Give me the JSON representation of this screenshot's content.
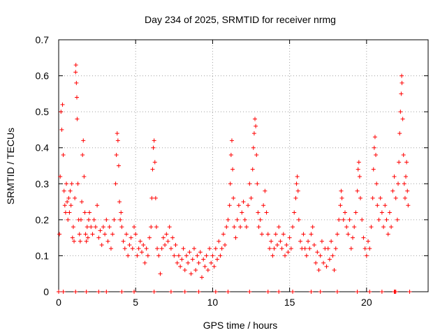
{
  "chart_data": {
    "type": "scatter",
    "title": "Day 234 of 2025, SRMTID for receiver nrmg",
    "xlabel": "GPS time / hours",
    "ylabel": "SRMTID / TECUs",
    "xlim": [
      0,
      24
    ],
    "ylim": [
      0,
      0.7
    ],
    "xticks": [
      0,
      5,
      10,
      15,
      20
    ],
    "yticks": [
      0,
      0.1,
      0.2,
      0.3,
      0.4,
      0.5,
      0.6,
      0.7
    ],
    "xtick_labels": [
      "0",
      "5",
      "10",
      "15",
      "20"
    ],
    "ytick_labels": [
      "0",
      "0.1",
      "0.2",
      "0.3",
      "0.4",
      "0.5",
      "0.6",
      "0.7"
    ],
    "grid": true,
    "marker": "+",
    "color": "#ff0000",
    "series": [
      {
        "name": "SRMTID",
        "points": [
          [
            0.0,
            0.0
          ],
          [
            0.05,
            0.16
          ],
          [
            0.1,
            0.32
          ],
          [
            0.15,
            0.5
          ],
          [
            0.2,
            0.45
          ],
          [
            0.25,
            0.52
          ],
          [
            0.3,
            0.38
          ],
          [
            0.35,
            0.28
          ],
          [
            0.4,
            0.24
          ],
          [
            0.45,
            0.22
          ],
          [
            0.5,
            0.3
          ],
          [
            0.55,
            0.25
          ],
          [
            0.6,
            0.2
          ],
          [
            0.65,
            0.26
          ],
          [
            0.7,
            0.22
          ],
          [
            0.75,
            0.28
          ],
          [
            0.8,
            0.24
          ],
          [
            0.85,
            0.3
          ],
          [
            0.9,
            0.15
          ],
          [
            0.95,
            0.18
          ],
          [
            1.0,
            0.14
          ],
          [
            1.05,
            0.26
          ],
          [
            1.1,
            0.61
          ],
          [
            1.12,
            0.63
          ],
          [
            1.15,
            0.58
          ],
          [
            1.18,
            0.54
          ],
          [
            1.2,
            0.48
          ],
          [
            1.25,
            0.3
          ],
          [
            1.3,
            0.2
          ],
          [
            1.35,
            0.16
          ],
          [
            1.4,
            0.14
          ],
          [
            1.45,
            0.2
          ],
          [
            1.5,
            0.25
          ],
          [
            1.55,
            0.38
          ],
          [
            1.6,
            0.42
          ],
          [
            1.65,
            0.32
          ],
          [
            1.7,
            0.22
          ],
          [
            1.75,
            0.16
          ],
          [
            1.8,
            0.14
          ],
          [
            1.85,
            0.18
          ],
          [
            1.9,
            0.15
          ],
          [
            1.95,
            0.2
          ],
          [
            2.0,
            0.22
          ],
          [
            2.1,
            0.18
          ],
          [
            2.2,
            0.16
          ],
          [
            2.3,
            0.2
          ],
          [
            2.4,
            0.18
          ],
          [
            2.5,
            0.24
          ],
          [
            2.6,
            0.15
          ],
          [
            2.7,
            0.17
          ],
          [
            2.8,
            0.13
          ],
          [
            2.9,
            0.18
          ],
          [
            3.0,
            0.16
          ],
          [
            3.1,
            0.2
          ],
          [
            3.2,
            0.14
          ],
          [
            3.3,
            0.18
          ],
          [
            3.4,
            0.12
          ],
          [
            3.5,
            0.16
          ],
          [
            3.6,
            0.2
          ],
          [
            3.7,
            0.3
          ],
          [
            3.75,
            0.38
          ],
          [
            3.8,
            0.44
          ],
          [
            3.85,
            0.42
          ],
          [
            3.9,
            0.35
          ],
          [
            3.95,
            0.25
          ],
          [
            4.0,
            0.2
          ],
          [
            4.05,
            0.22
          ],
          [
            4.1,
            0.18
          ],
          [
            4.2,
            0.14
          ],
          [
            4.3,
            0.12
          ],
          [
            4.4,
            0.16
          ],
          [
            4.5,
            0.1
          ],
          [
            4.6,
            0.13
          ],
          [
            4.7,
            0.15
          ],
          [
            4.8,
            0.12
          ],
          [
            4.9,
            0.18
          ],
          [
            5.0,
            0.16
          ],
          [
            5.1,
            0.1
          ],
          [
            5.2,
            0.12
          ],
          [
            5.3,
            0.14
          ],
          [
            5.4,
            0.11
          ],
          [
            5.5,
            0.13
          ],
          [
            5.6,
            0.08
          ],
          [
            5.7,
            0.12
          ],
          [
            5.8,
            0.1
          ],
          [
            5.9,
            0.15
          ],
          [
            6.0,
            0.18
          ],
          [
            6.05,
            0.26
          ],
          [
            6.1,
            0.34
          ],
          [
            6.15,
            0.4
          ],
          [
            6.2,
            0.42
          ],
          [
            6.25,
            0.36
          ],
          [
            6.3,
            0.26
          ],
          [
            6.35,
            0.18
          ],
          [
            6.4,
            0.12
          ],
          [
            6.5,
            0.1
          ],
          [
            6.6,
            0.05
          ],
          [
            6.7,
            0.12
          ],
          [
            6.8,
            0.15
          ],
          [
            6.9,
            0.13
          ],
          [
            7.0,
            0.16
          ],
          [
            7.1,
            0.14
          ],
          [
            7.2,
            0.18
          ],
          [
            7.3,
            0.12
          ],
          [
            7.4,
            0.15
          ],
          [
            7.5,
            0.1
          ],
          [
            7.6,
            0.13
          ],
          [
            7.7,
            0.08
          ],
          [
            7.8,
            0.1
          ],
          [
            7.9,
            0.07
          ],
          [
            8.0,
            0.09
          ],
          [
            8.1,
            0.12
          ],
          [
            8.2,
            0.06
          ],
          [
            8.3,
            0.1
          ],
          [
            8.4,
            0.08
          ],
          [
            8.5,
            0.11
          ],
          [
            8.6,
            0.05
          ],
          [
            8.7,
            0.09
          ],
          [
            8.8,
            0.12
          ],
          [
            8.9,
            0.06
          ],
          [
            9.0,
            0.1
          ],
          [
            9.1,
            0.08
          ],
          [
            9.2,
            0.11
          ],
          [
            9.3,
            0.04
          ],
          [
            9.4,
            0.09
          ],
          [
            9.5,
            0.07
          ],
          [
            9.6,
            0.1
          ],
          [
            9.7,
            0.06
          ],
          [
            9.8,
            0.12
          ],
          [
            9.9,
            0.08
          ],
          [
            10.0,
            0.1
          ],
          [
            10.1,
            0.07
          ],
          [
            10.2,
            0.12
          ],
          [
            10.3,
            0.09
          ],
          [
            10.4,
            0.14
          ],
          [
            10.5,
            0.1
          ],
          [
            10.6,
            0.12
          ],
          [
            10.7,
            0.16
          ],
          [
            10.8,
            0.13
          ],
          [
            10.9,
            0.18
          ],
          [
            11.0,
            0.2
          ],
          [
            11.1,
            0.24
          ],
          [
            11.15,
            0.3
          ],
          [
            11.2,
            0.38
          ],
          [
            11.25,
            0.42
          ],
          [
            11.3,
            0.34
          ],
          [
            11.35,
            0.26
          ],
          [
            11.4,
            0.18
          ],
          [
            11.5,
            0.15
          ],
          [
            11.6,
            0.2
          ],
          [
            11.7,
            0.24
          ],
          [
            11.8,
            0.18
          ],
          [
            11.9,
            0.22
          ],
          [
            12.0,
            0.25
          ],
          [
            12.1,
            0.2
          ],
          [
            12.2,
            0.18
          ],
          [
            12.3,
            0.24
          ],
          [
            12.4,
            0.3
          ],
          [
            12.5,
            0.26
          ],
          [
            12.6,
            0.34
          ],
          [
            12.65,
            0.4
          ],
          [
            12.7,
            0.44
          ],
          [
            12.75,
            0.48
          ],
          [
            12.8,
            0.46
          ],
          [
            12.85,
            0.38
          ],
          [
            12.9,
            0.3
          ],
          [
            12.95,
            0.22
          ],
          [
            13.0,
            0.18
          ],
          [
            13.1,
            0.2
          ],
          [
            13.2,
            0.16
          ],
          [
            13.3,
            0.24
          ],
          [
            13.4,
            0.28
          ],
          [
            13.5,
            0.22
          ],
          [
            13.6,
            0.16
          ],
          [
            13.7,
            0.12
          ],
          [
            13.8,
            0.14
          ],
          [
            13.9,
            0.1
          ],
          [
            14.0,
            0.12
          ],
          [
            14.1,
            0.16
          ],
          [
            14.2,
            0.13
          ],
          [
            14.3,
            0.18
          ],
          [
            14.4,
            0.14
          ],
          [
            14.5,
            0.12
          ],
          [
            14.6,
            0.16
          ],
          [
            14.7,
            0.1
          ],
          [
            14.8,
            0.13
          ],
          [
            14.9,
            0.11
          ],
          [
            15.0,
            0.15
          ],
          [
            15.1,
            0.12
          ],
          [
            15.2,
            0.18
          ],
          [
            15.3,
            0.22
          ],
          [
            15.4,
            0.26
          ],
          [
            15.45,
            0.3
          ],
          [
            15.5,
            0.32
          ],
          [
            15.55,
            0.28
          ],
          [
            15.6,
            0.2
          ],
          [
            15.7,
            0.14
          ],
          [
            15.8,
            0.12
          ],
          [
            15.9,
            0.16
          ],
          [
            16.0,
            0.12
          ],
          [
            16.1,
            0.1
          ],
          [
            16.2,
            0.14
          ],
          [
            16.3,
            0.12
          ],
          [
            16.4,
            0.16
          ],
          [
            16.5,
            0.18
          ],
          [
            16.6,
            0.13
          ],
          [
            16.7,
            0.08
          ],
          [
            16.8,
            0.11
          ],
          [
            16.9,
            0.06
          ],
          [
            17.0,
            0.1
          ],
          [
            17.1,
            0.14
          ],
          [
            17.2,
            0.08
          ],
          [
            17.3,
            0.12
          ],
          [
            17.4,
            0.07
          ],
          [
            17.5,
            0.12
          ],
          [
            17.6,
            0.09
          ],
          [
            17.7,
            0.14
          ],
          [
            17.8,
            0.1
          ],
          [
            17.9,
            0.06
          ],
          [
            18.0,
            0.12
          ],
          [
            18.1,
            0.16
          ],
          [
            18.2,
            0.2
          ],
          [
            18.3,
            0.24
          ],
          [
            18.35,
            0.28
          ],
          [
            18.4,
            0.26
          ],
          [
            18.5,
            0.2
          ],
          [
            18.6,
            0.22
          ],
          [
            18.7,
            0.18
          ],
          [
            18.8,
            0.16
          ],
          [
            18.9,
            0.2
          ],
          [
            19.0,
            0.12
          ],
          [
            19.1,
            0.15
          ],
          [
            19.2,
            0.18
          ],
          [
            19.3,
            0.22
          ],
          [
            19.4,
            0.28
          ],
          [
            19.45,
            0.34
          ],
          [
            19.5,
            0.36
          ],
          [
            19.55,
            0.32
          ],
          [
            19.6,
            0.26
          ],
          [
            19.7,
            0.2
          ],
          [
            19.8,
            0.15
          ],
          [
            19.9,
            0.12
          ],
          [
            20.0,
            0.1
          ],
          [
            20.1,
            0.14
          ],
          [
            20.2,
            0.12
          ],
          [
            20.3,
            0.18
          ],
          [
            20.4,
            0.26
          ],
          [
            20.45,
            0.34
          ],
          [
            20.5,
            0.4
          ],
          [
            20.55,
            0.43
          ],
          [
            20.6,
            0.38
          ],
          [
            20.65,
            0.3
          ],
          [
            20.7,
            0.24
          ],
          [
            20.8,
            0.2
          ],
          [
            20.9,
            0.26
          ],
          [
            21.0,
            0.22
          ],
          [
            21.1,
            0.18
          ],
          [
            21.2,
            0.24
          ],
          [
            21.3,
            0.2
          ],
          [
            21.4,
            0.16
          ],
          [
            21.5,
            0.22
          ],
          [
            21.6,
            0.18
          ],
          [
            21.7,
            0.28
          ],
          [
            21.8,
            0.32
          ],
          [
            21.9,
            0.26
          ],
          [
            22.0,
            0.2
          ],
          [
            22.05,
            0.3
          ],
          [
            22.1,
            0.36
          ],
          [
            22.15,
            0.44
          ],
          [
            22.2,
            0.5
          ],
          [
            22.25,
            0.55
          ],
          [
            22.28,
            0.6
          ],
          [
            22.3,
            0.58
          ],
          [
            22.35,
            0.48
          ],
          [
            22.4,
            0.38
          ],
          [
            22.45,
            0.3
          ],
          [
            22.5,
            0.26
          ],
          [
            22.55,
            0.32
          ],
          [
            22.6,
            0.36
          ],
          [
            22.65,
            0.28
          ],
          [
            22.7,
            0.24
          ],
          [
            0.3,
            0.0
          ],
          [
            1.1,
            0.0
          ],
          [
            1.8,
            0.0
          ],
          [
            2.6,
            0.0
          ],
          [
            3.1,
            0.0
          ],
          [
            4.1,
            0.0
          ],
          [
            4.9,
            0.0
          ],
          [
            6.2,
            0.0
          ],
          [
            7.3,
            0.0
          ],
          [
            8.2,
            0.0
          ],
          [
            9.1,
            0.0
          ],
          [
            10.2,
            0.0
          ],
          [
            11.0,
            0.0
          ],
          [
            12.4,
            0.0
          ],
          [
            13.6,
            0.0
          ],
          [
            14.3,
            0.0
          ],
          [
            15.2,
            0.0
          ],
          [
            16.4,
            0.0
          ],
          [
            17.0,
            0.0
          ],
          [
            18.1,
            0.0
          ],
          [
            19.4,
            0.0
          ],
          [
            20.2,
            0.0
          ],
          [
            21.0,
            0.0
          ],
          [
            21.8,
            0.0
          ],
          [
            21.85,
            0.0
          ],
          [
            21.9,
            0.0
          ],
          [
            22.8,
            0.0
          ]
        ]
      }
    ]
  }
}
